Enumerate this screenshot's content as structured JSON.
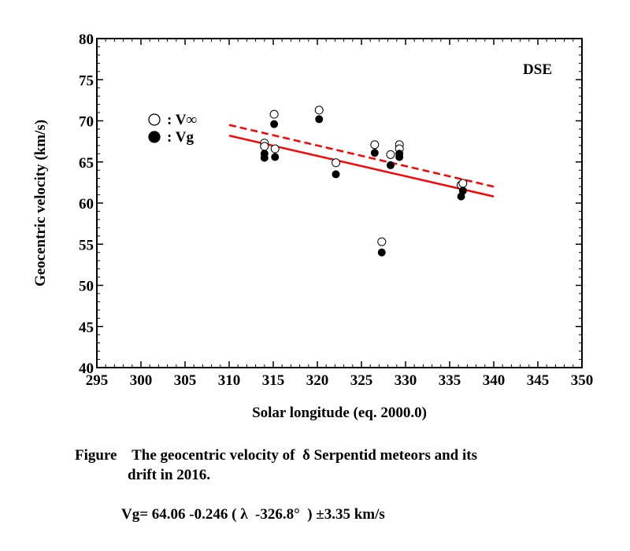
{
  "chart_data": {
    "type": "scatter",
    "xlabel": "Solar longitude (eq. 2000.0)",
    "ylabel": "Geocentric velocity (km/s)",
    "xlim": [
      295,
      350
    ],
    "ylim": [
      40,
      80
    ],
    "xticks": [
      295,
      300,
      305,
      310,
      315,
      320,
      325,
      330,
      335,
      340,
      345,
      350
    ],
    "yticks": [
      40,
      45,
      50,
      55,
      60,
      65,
      70,
      75,
      80
    ],
    "annotation": "DSE",
    "legend": {
      "placement": "top-left",
      "entries": [
        {
          "label": ": V∞",
          "marker": "open-circle"
        },
        {
          "label": ": Vg",
          "marker": "filled-circle"
        }
      ]
    },
    "series": [
      {
        "name": "V∞",
        "marker": "open-circle",
        "x": [
          314.0,
          314.0,
          315.1,
          315.2,
          320.2,
          322.1,
          326.5,
          327.3,
          328.3,
          329.3,
          329.3,
          336.3,
          336.5
        ],
        "y": [
          67.3,
          66.9,
          70.8,
          66.6,
          71.3,
          64.9,
          67.1,
          55.3,
          65.9,
          67.1,
          66.6,
          62.2,
          62.4
        ]
      },
      {
        "name": "Vg",
        "marker": "filled-circle",
        "x": [
          314.0,
          314.0,
          315.1,
          315.2,
          320.2,
          322.1,
          326.5,
          327.3,
          328.3,
          329.3,
          329.3,
          336.3,
          336.5
        ],
        "y": [
          66.0,
          65.5,
          69.6,
          65.6,
          70.2,
          63.5,
          66.1,
          54.0,
          64.6,
          66.0,
          65.6,
          60.8,
          61.5
        ]
      }
    ],
    "fit_lines": [
      {
        "style": "solid",
        "color": "#ff0000",
        "x": [
          310,
          340
        ],
        "y": [
          68.2,
          60.8
        ]
      },
      {
        "style": "dashed",
        "color": "#ff0000",
        "x": [
          310,
          340
        ],
        "y": [
          69.5,
          62.0
        ]
      }
    ]
  },
  "caption": {
    "line1": "Figure    The geocentric velocity of  δ Serpentid meteors and its",
    "line2": "drift in 2016.",
    "formula": "Vg= 64.06 -0.246 ( λ  -326.8°  ) ±3.35 km/s"
  }
}
